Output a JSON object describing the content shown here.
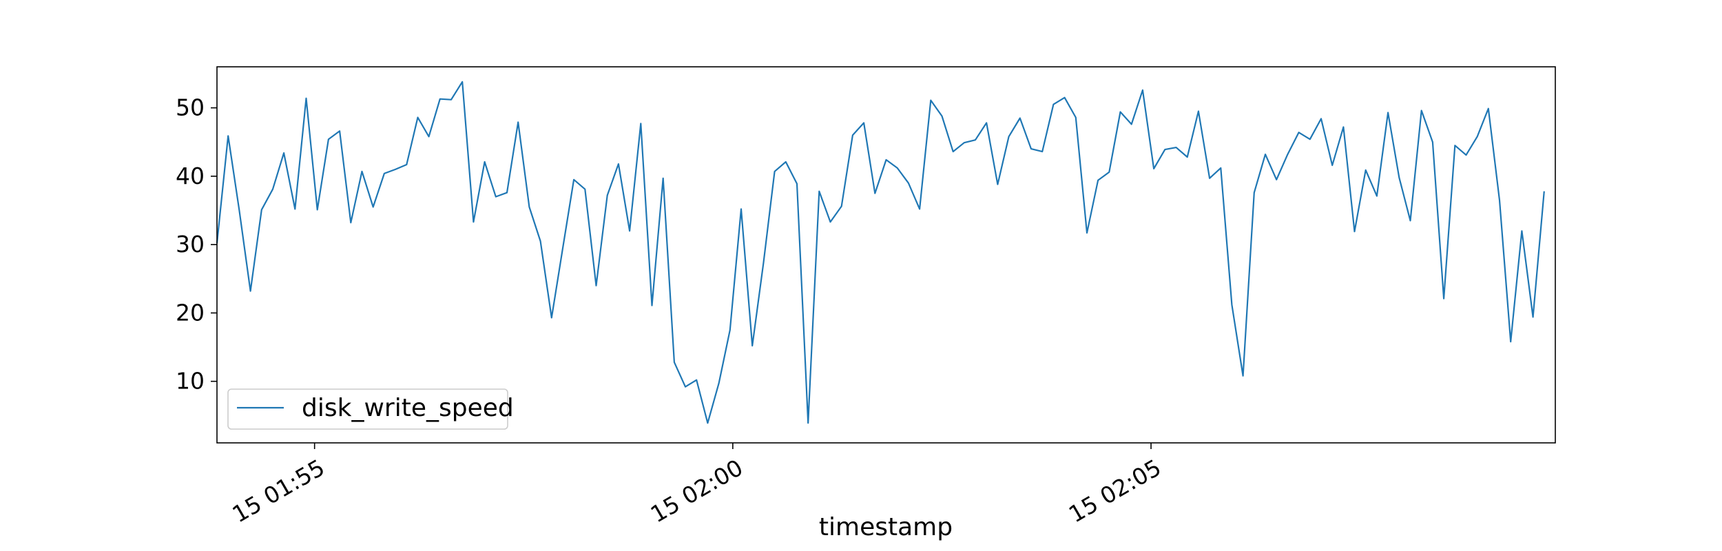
{
  "chart_data": {
    "type": "line",
    "xlabel": "timestamp",
    "ylabel": "",
    "title": "",
    "ylim": [
      1.0,
      56.0
    ],
    "xlim": [
      "2024-01-15 01:53:50",
      "2024-01-15 02:09:50"
    ],
    "grid": false,
    "legend_position": "lower-left",
    "x_ticks": [
      {
        "value": "2024-01-15 01:55:00",
        "label": "15 01:55"
      },
      {
        "value": "2024-01-15 02:00:00",
        "label": "15 02:00"
      },
      {
        "value": "2024-01-15 02:05:00",
        "label": "15 02:05"
      }
    ],
    "y_ticks": [
      10,
      20,
      30,
      40,
      50
    ],
    "x_start": "2024-01-15 01:53:50",
    "x_interval_seconds": 8,
    "series": [
      {
        "name": "disk_write_speed",
        "color": "#1f77b4",
        "values": [
          30.2,
          45.9,
          35.0,
          23.2,
          35.1,
          38.1,
          43.4,
          35.2,
          51.4,
          35.1,
          45.4,
          46.6,
          33.2,
          40.7,
          35.5,
          40.4,
          41.0,
          41.7,
          48.6,
          45.8,
          51.3,
          51.2,
          53.8,
          33.3,
          42.1,
          37.0,
          37.6,
          47.9,
          35.5,
          30.5,
          19.3,
          29.4,
          39.5,
          38.1,
          24.0,
          37.2,
          41.8,
          32.0,
          47.7,
          21.1,
          39.7,
          12.8,
          9.2,
          10.2,
          3.9,
          9.7,
          17.5,
          35.2,
          15.2,
          27.3,
          40.7,
          42.1,
          38.9,
          3.9,
          37.8,
          33.3,
          35.6,
          46.0,
          47.8,
          37.5,
          42.4,
          41.2,
          39.0,
          35.2,
          51.1,
          48.8,
          43.6,
          44.9,
          45.3,
          47.8,
          38.8,
          45.8,
          48.5,
          44.0,
          43.6,
          50.5,
          51.5,
          48.6,
          31.7,
          39.4,
          40.6,
          49.4,
          47.6,
          52.6,
          41.1,
          43.9,
          44.2,
          42.8,
          49.5,
          39.7,
          41.2,
          21.2,
          10.8,
          37.6,
          43.2,
          39.5,
          43.2,
          46.4,
          45.4,
          48.4,
          41.6,
          47.2,
          31.9,
          40.9,
          37.1,
          49.3,
          39.8,
          33.5,
          49.6,
          45.0,
          22.1,
          44.5,
          43.1,
          45.8,
          49.9,
          36.5,
          15.8,
          32.0,
          19.4,
          37.8
        ]
      }
    ]
  }
}
